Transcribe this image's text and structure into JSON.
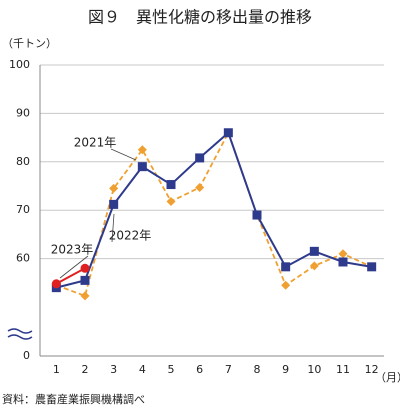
{
  "chart_data": {
    "type": "line",
    "title": "図９　異性化糖の移出量の推移",
    "y_label": "（千トン）",
    "x_label": "（月）",
    "source": "資料：農畜産業振興機構調べ",
    "categories": [
      "1",
      "2",
      "3",
      "4",
      "5",
      "6",
      "7",
      "8",
      "9",
      "10",
      "11",
      "12"
    ],
    "series": [
      {
        "name": "2021年",
        "color": "#f0a030",
        "dashed": true,
        "marker": "diamond",
        "values": [
          54.5,
          52.3,
          74.5,
          82.5,
          71.8,
          74.7,
          86,
          69,
          54.5,
          58.5,
          61,
          58.3
        ]
      },
      {
        "name": "2022年",
        "color": "#2e3a8c",
        "dashed": false,
        "marker": "square",
        "values": [
          54,
          55.5,
          71.2,
          79,
          75.3,
          80.8,
          86,
          69,
          58.3,
          61.5,
          59.3,
          58.3
        ]
      },
      {
        "name": "2023年",
        "color": "#e02020",
        "dashed": false,
        "marker": "circle",
        "values": [
          54.8,
          58,
          null,
          null,
          null,
          null,
          null,
          null,
          null,
          null,
          null,
          null
        ]
      }
    ],
    "ylim": [
      0,
      100
    ],
    "ybreak": [
      0,
      50
    ],
    "yticks": [
      0,
      60,
      70,
      80,
      90,
      100
    ],
    "grid": true
  }
}
